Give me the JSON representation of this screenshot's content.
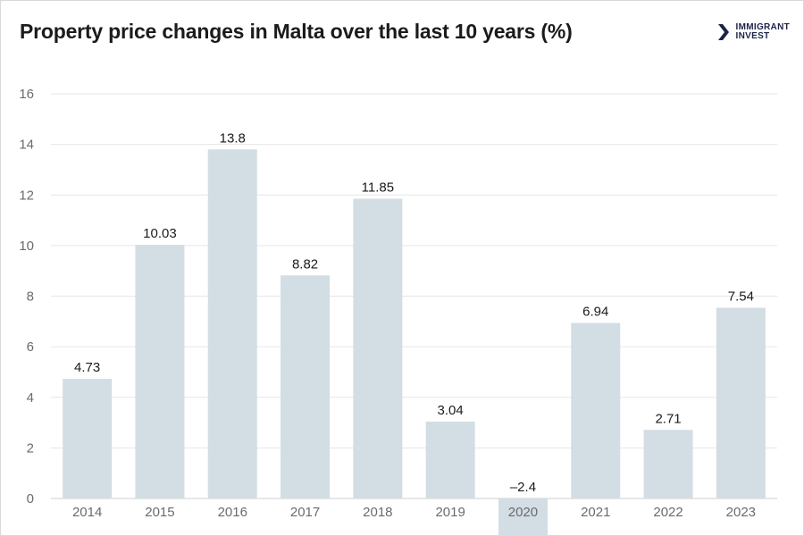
{
  "title": "Property price changes in Malta over the last 10 years (%)",
  "logo": {
    "line1": "IMMIGRANT",
    "line2": "INVEST",
    "icon": "chevron-logo-icon"
  },
  "colors": {
    "bar": "#d3dde4",
    "grid": "#e6e6e6",
    "text": "#1b1b1b",
    "axis_text": "#6b6b6b"
  },
  "chart_data": {
    "type": "bar",
    "title": "Property price changes in Malta over the last 10 years (%)",
    "categories": [
      "2014",
      "2015",
      "2016",
      "2017",
      "2018",
      "2019",
      "2020",
      "2021",
      "2022",
      "2023"
    ],
    "values": [
      4.73,
      10.03,
      13.8,
      8.82,
      11.85,
      3.04,
      -2.4,
      6.94,
      2.71,
      7.54
    ],
    "value_labels": [
      "4.73",
      "10.03",
      "13.8",
      "8.82",
      "11.85",
      "3.04",
      "–2.4",
      "6.94",
      "2.71",
      "7.54"
    ],
    "yticks": [
      0,
      2,
      4,
      6,
      8,
      10,
      12,
      14,
      16
    ],
    "ylim": [
      0,
      16
    ],
    "xlabel": "",
    "ylabel": "",
    "grid": true,
    "legend": "none"
  }
}
